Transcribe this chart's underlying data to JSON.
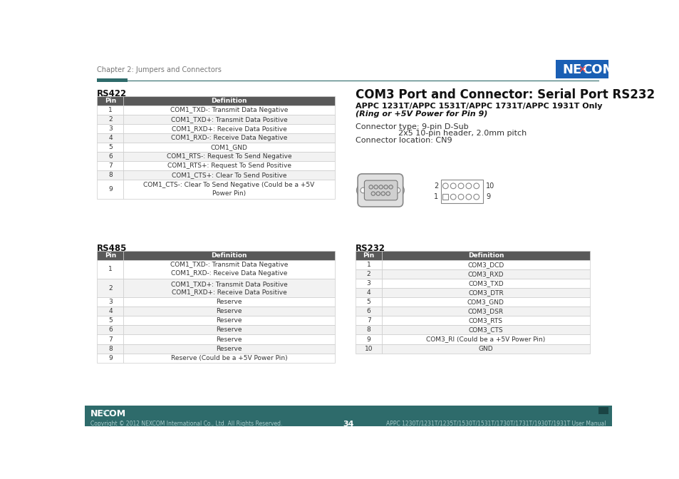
{
  "page_header": "Chapter 2: Jumpers and Connectors",
  "header_bar_color": "#1a5276",
  "header_accent_color": "#2e6b6b",
  "rs422_title": "RS422",
  "rs422_headers": [
    "Pin",
    "Definition"
  ],
  "rs422_rows": [
    [
      "1",
      "COM1_TXD-: Transmit Data Negative"
    ],
    [
      "2",
      "COM1_TXD+: Transmit Data Positive"
    ],
    [
      "3",
      "COM1_RXD+: Receive Data Positive"
    ],
    [
      "4",
      "COM1_RXD-: Receive Data Negative"
    ],
    [
      "5",
      "COM1_GND"
    ],
    [
      "6",
      "COM1_RTS-: Request To Send Negative"
    ],
    [
      "7",
      "COM1_RTS+: Request To Send Positive"
    ],
    [
      "8",
      "COM1_CTS+: Clear To Send Positive"
    ],
    [
      "9",
      "COM1_CTS-: Clear To Send Negative (Could be a +5V\nPower Pin)"
    ]
  ],
  "com3_title": "COM3 Port and Connector: Serial Port RS232",
  "com3_subtitle1": "APPC 1231T/APPC 1531T/APPC 1731T/APPC 1931T Only",
  "com3_subtitle2": "(Ring or +5V Power for Pin 9)",
  "com3_info1": "Connector type: 9-pin D-Sub",
  "com3_info2": "                    2x5 10-pin header, 2.0mm pitch",
  "com3_info3": "Connector location: CN9",
  "rs485_title": "RS485",
  "rs485_headers": [
    "Pin",
    "Definition"
  ],
  "rs485_rows": [
    [
      "1",
      "COM1_TXD-: Transmit Data Negative\nCOM1_RXD-: Receive Data Negative"
    ],
    [
      "2",
      "COM1_TXD+: Transmit Data Positive\nCOM1_RXD+: Receive Data Positive"
    ],
    [
      "3",
      "Reserve"
    ],
    [
      "4",
      "Reserve"
    ],
    [
      "5",
      "Reserve"
    ],
    [
      "6",
      "Reserve"
    ],
    [
      "7",
      "Reserve"
    ],
    [
      "8",
      "Reserve"
    ],
    [
      "9",
      "Reserve (Could be a +5V Power Pin)"
    ]
  ],
  "rs232_title": "RS232",
  "rs232_headers": [
    "Pin",
    "Definition"
  ],
  "rs232_rows": [
    [
      "1",
      "COM3_DCD"
    ],
    [
      "2",
      "COM3_RXD"
    ],
    [
      "3",
      "COM3_TXD"
    ],
    [
      "4",
      "COM3_DTR"
    ],
    [
      "5",
      "COM3_GND"
    ],
    [
      "6",
      "COM3_DSR"
    ],
    [
      "7",
      "COM3_RTS"
    ],
    [
      "8",
      "COM3_CTS"
    ],
    [
      "9",
      "COM3_RI (Could be a +5V Power Pin)"
    ],
    [
      "10",
      "GND"
    ]
  ],
  "footer_bg": "#2e6b6b",
  "footer_text_left": "Copyright © 2012 NEXCOM International Co., Ltd. All Rights Reserved.",
  "footer_page": "34",
  "footer_text_right": "APPC 1230T/1231T/1235T/1530T/1531T/1730T/1731T/1930T/1931T User Manual",
  "table_header_bg": "#595959",
  "table_header_fg": "#ffffff",
  "table_row_bg1": "#ffffff",
  "table_row_bg2": "#f2f2f2",
  "table_border": "#cccccc",
  "logo_bg": "#1a5fb4",
  "logo_text": "NE✗COM",
  "bg_color": "#ffffff",
  "text_color": "#333333",
  "dark_text": "#111111"
}
